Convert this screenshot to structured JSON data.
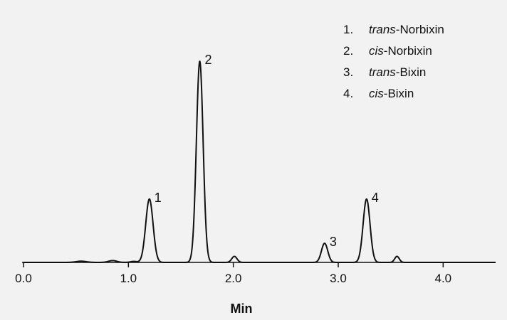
{
  "chart_data": {
    "type": "line",
    "xlabel": "Min",
    "ylabel": "",
    "title": "",
    "xlim": [
      0.0,
      4.5
    ],
    "ylim": [
      0,
      105
    ],
    "xticks": [
      "0.0",
      "1.0",
      "2.0",
      "3.0",
      "4.0"
    ],
    "grid": false,
    "legend_position": "top-right",
    "line_color": "#111111",
    "background_color": "#f2f2f2",
    "series": [
      {
        "peaks": [
          {
            "x": 0.55,
            "height": 0.6,
            "width": 0.05
          },
          {
            "x": 0.85,
            "height": 0.9,
            "width": 0.04
          },
          {
            "x": 1.05,
            "height": 0.5,
            "width": 0.03
          },
          {
            "x": 1.2,
            "height": 31.5,
            "width": 0.035
          },
          {
            "x": 1.68,
            "height": 100,
            "width": 0.032
          },
          {
            "x": 2.01,
            "height": 3.0,
            "width": 0.025
          },
          {
            "x": 2.87,
            "height": 9.5,
            "width": 0.03
          },
          {
            "x": 3.27,
            "height": 31.5,
            "width": 0.033
          },
          {
            "x": 3.56,
            "height": 3.0,
            "width": 0.022
          }
        ]
      }
    ],
    "peak_labels": [
      {
        "label": "1",
        "x": 1.2,
        "y": 31.5
      },
      {
        "label": "2",
        "x": 1.68,
        "y": 100
      },
      {
        "label": "3",
        "x": 2.87,
        "y": 9.5
      },
      {
        "label": "4",
        "x": 3.27,
        "y": 31.5
      }
    ],
    "legend": [
      {
        "num": "1.",
        "prefix": "trans",
        "suffix": "-Norbixin"
      },
      {
        "num": "2.",
        "prefix": "cis",
        "suffix": "-Norbixin"
      },
      {
        "num": "3.",
        "prefix": "trans",
        "suffix": "-Bixin"
      },
      {
        "num": "4.",
        "prefix": "cis",
        "suffix": "-Bixin"
      }
    ]
  }
}
